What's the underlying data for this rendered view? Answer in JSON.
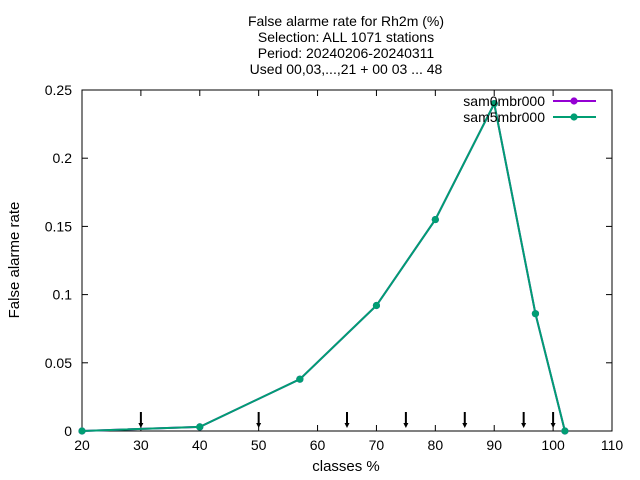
{
  "chart_data": {
    "type": "line",
    "title_lines": [
      "False alarme rate  for Rh2m (%)",
      "Selection: ALL    1071 stations",
      "Period: 20240206-20240311",
      "Used 00,03,...,21 + 00 03 ... 48"
    ],
    "xlabel": "classes %",
    "ylabel": "False alarme rate",
    "xlim": [
      20,
      110
    ],
    "ylim": [
      0,
      0.25
    ],
    "xticks": [
      "20",
      "30",
      "40",
      "50",
      "60",
      "70",
      "80",
      "90",
      "100",
      "110"
    ],
    "yticks": [
      "0",
      "0.05",
      "0.1",
      "0.15",
      "0.2",
      "0.25"
    ],
    "grid": false,
    "legend_position": "top-right",
    "series": [
      {
        "name": "sam0mbr000",
        "color": "#9400d3",
        "x": [
          20,
          40,
          57,
          70,
          80,
          90,
          97,
          102
        ],
        "y": [
          0.0,
          0.003,
          0.038,
          0.092,
          0.155,
          0.24,
          0.086,
          0.0
        ]
      },
      {
        "name": "sam5mbr000",
        "color": "#009e73",
        "x": [
          20,
          40,
          57,
          70,
          80,
          90,
          97,
          102
        ],
        "y": [
          0.0,
          0.003,
          0.038,
          0.092,
          0.155,
          0.24,
          0.086,
          0.0
        ]
      }
    ],
    "class_markers": [
      30,
      50,
      65,
      75,
      85,
      95,
      100
    ]
  }
}
